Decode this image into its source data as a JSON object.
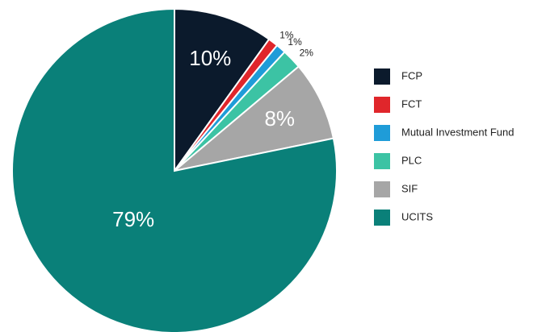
{
  "chart_data": {
    "type": "pie",
    "categories": [
      "FCP",
      "FCT",
      "Mutual Investment Fund",
      "PLC",
      "SIF",
      "UCITS"
    ],
    "values": [
      10,
      1,
      1,
      2,
      8,
      79
    ],
    "value_labels": [
      "10%",
      "1%",
      "1%",
      "2%",
      "8%",
      "79%"
    ],
    "colors": [
      "#0b1a2c",
      "#e0262b",
      "#1f9cd8",
      "#3cc3a4",
      "#a6a6a6",
      "#0a8079"
    ],
    "legend": "right"
  }
}
